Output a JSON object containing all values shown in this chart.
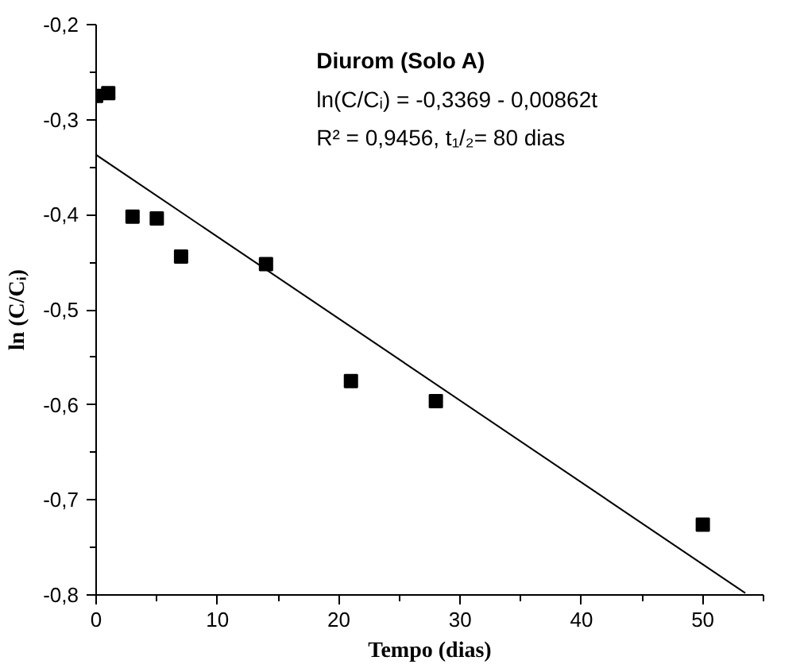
{
  "chart_data": {
    "type": "scatter",
    "xlabel": "Tempo (dias)",
    "ylabel": "ln (C/Cᵢ)",
    "annotations": [
      "Diurom (Solo A)",
      "ln(C/Cᵢ) = -0,3369 - 0,00862t",
      "R² = 0,9456, t₁/₂= 80 dias"
    ],
    "x": [
      0,
      1,
      3,
      5,
      7,
      14,
      21,
      28,
      50
    ],
    "series": [
      {
        "color": "#000000",
        "marker": "square",
        "values": [
          -0.275,
          -0.272,
          -0.402,
          -0.404,
          -0.444,
          -0.452,
          -0.575,
          -0.596,
          -0.726
        ]
      },
      {
        "type": "line",
        "color": "#000000",
        "x": [
          0,
          53.5
        ],
        "values": [
          -0.337,
          -0.798
        ],
        "line_style": "solid"
      }
    ],
    "xlim": [
      0,
      55
    ],
    "ylim": [
      -0.8,
      -0.2
    ],
    "xticks": [
      0,
      10,
      20,
      30,
      40,
      50
    ],
    "yticks": [
      {
        "value": -0.8,
        "label": "-0,8"
      },
      {
        "value": -0.7,
        "label": "-0,7"
      },
      {
        "value": -0.6,
        "label": "-0,6"
      },
      {
        "value": -0.5,
        "label": "-0,5"
      },
      {
        "value": -0.4,
        "label": "-0,4"
      },
      {
        "value": -0.3,
        "label": "-0,3"
      },
      {
        "value": -0.2,
        "label": "-0,2"
      }
    ],
    "grid": false
  }
}
